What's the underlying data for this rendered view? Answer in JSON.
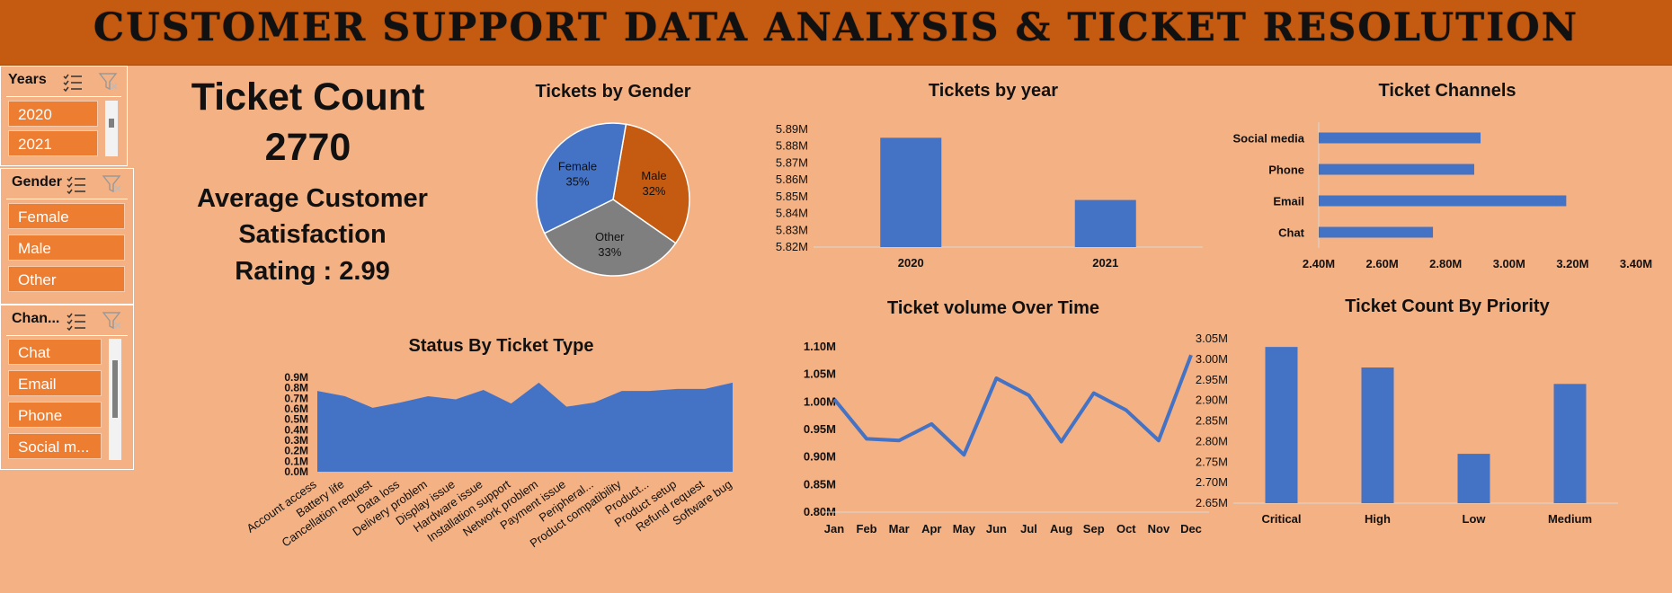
{
  "header": {
    "title": "CUSTOMER SUPPORT DATA ANALYSIS & TICKET RESOLUTION"
  },
  "slicers": {
    "years": {
      "title": "Years",
      "items": [
        "2020",
        "2021"
      ]
    },
    "gender": {
      "title": "Gender",
      "items": [
        "Female",
        "Male",
        "Other"
      ]
    },
    "channel": {
      "title": "Chan...",
      "items": [
        "Chat",
        "Email",
        "Phone",
        "Social m..."
      ]
    }
  },
  "kpi": {
    "ticket_count_label": "Ticket Count",
    "ticket_count_value": "2770",
    "satisfaction_line1": "Average Customer",
    "satisfaction_line2": "Satisfaction",
    "satisfaction_line3": "Rating : 2.99"
  },
  "colors": {
    "banner": "#c55a11",
    "background": "#f4b183",
    "blue": "#4472c4",
    "orange": "#c55a11",
    "gray": "#7f7f7f",
    "slicer_button": "#ed7d31"
  },
  "chart_data": [
    {
      "id": "gender",
      "type": "pie",
      "title": "Tickets by Gender",
      "slices": [
        {
          "label": "Female",
          "value": 35,
          "pct_label": "35%",
          "color": "#4472c4"
        },
        {
          "label": "Male",
          "value": 32,
          "pct_label": "32%",
          "color": "#c55a11"
        },
        {
          "label": "Other",
          "value": 33,
          "pct_label": "33%",
          "color": "#7f7f7f"
        }
      ]
    },
    {
      "id": "year",
      "type": "bar",
      "title": "Tickets by year",
      "categories": [
        "2020",
        "2021"
      ],
      "values": [
        5.885,
        5.848
      ],
      "ylim": [
        5.82,
        5.89
      ],
      "yticks": [
        5.82,
        5.83,
        5.84,
        5.85,
        5.86,
        5.87,
        5.88,
        5.89
      ],
      "ytick_labels": [
        "5.82M",
        "5.83M",
        "5.84M",
        "5.85M",
        "5.86M",
        "5.87M",
        "5.88M",
        "5.89M"
      ]
    },
    {
      "id": "channels",
      "type": "bar",
      "orientation": "horizontal",
      "title": "Ticket Channels",
      "categories": [
        "Social media",
        "Phone",
        "Email",
        "Chat"
      ],
      "values": [
        2.91,
        2.89,
        3.18,
        2.76
      ],
      "xlim": [
        2.4,
        3.4
      ],
      "xticks": [
        2.4,
        2.6,
        2.8,
        3.0,
        3.2,
        3.4
      ],
      "xtick_labels": [
        "2.40M",
        "2.60M",
        "2.80M",
        "3.00M",
        "3.20M",
        "3.40M"
      ]
    },
    {
      "id": "status",
      "type": "area",
      "title": "Status By Ticket Type",
      "categories": [
        "Account access",
        "Battery life",
        "Cancellation request",
        "Data loss",
        "Delivery problem",
        "Display issue",
        "Hardware issue",
        "Installation support",
        "Network problem",
        "Payment issue",
        "Peripheral...",
        "Product compatibility",
        "Product...",
        "Product setup",
        "Refund request",
        "Software bug"
      ],
      "values": [
        0.77,
        0.72,
        0.61,
        0.66,
        0.72,
        0.69,
        0.78,
        0.65,
        0.85,
        0.62,
        0.66,
        0.77,
        0.77,
        0.79,
        0.79,
        0.85
      ],
      "ylim": [
        0,
        0.9
      ],
      "yticks": [
        0,
        0.1,
        0.2,
        0.3,
        0.4,
        0.5,
        0.6,
        0.7,
        0.8,
        0.9
      ],
      "ytick_labels": [
        "0.0M",
        "0.1M",
        "0.2M",
        "0.3M",
        "0.4M",
        "0.5M",
        "0.6M",
        "0.7M",
        "0.8M",
        "0.9M"
      ]
    },
    {
      "id": "volume",
      "type": "line",
      "title": "Ticket volume Over Time",
      "categories": [
        "Jan",
        "Feb",
        "Mar",
        "Apr",
        "May",
        "Jun",
        "Jul",
        "Aug",
        "Sep",
        "Oct",
        "Nov",
        "Dec"
      ],
      "values": [
        1.005,
        0.933,
        0.93,
        0.96,
        0.904,
        1.043,
        1.012,
        0.928,
        1.016,
        0.985,
        0.93,
        1.085
      ],
      "ylim": [
        0.8,
        1.1
      ],
      "yticks": [
        0.8,
        0.85,
        0.9,
        0.95,
        1.0,
        1.05,
        1.1
      ],
      "ytick_labels": [
        "0.80M",
        "0.85M",
        "0.90M",
        "0.95M",
        "1.00M",
        "1.05M",
        "1.10M"
      ]
    },
    {
      "id": "priority",
      "type": "bar",
      "title": "Ticket Count By Priority",
      "categories": [
        "Critical",
        "High",
        "Low",
        "Medium"
      ],
      "values": [
        3.03,
        2.98,
        2.77,
        2.94
      ],
      "ylim": [
        2.65,
        3.05
      ],
      "yticks": [
        2.65,
        2.7,
        2.75,
        2.8,
        2.85,
        2.9,
        2.95,
        3.0,
        3.05
      ],
      "ytick_labels": [
        "2.65M",
        "2.70M",
        "2.75M",
        "2.80M",
        "2.85M",
        "2.90M",
        "2.95M",
        "3.00M",
        "3.05M"
      ]
    }
  ]
}
